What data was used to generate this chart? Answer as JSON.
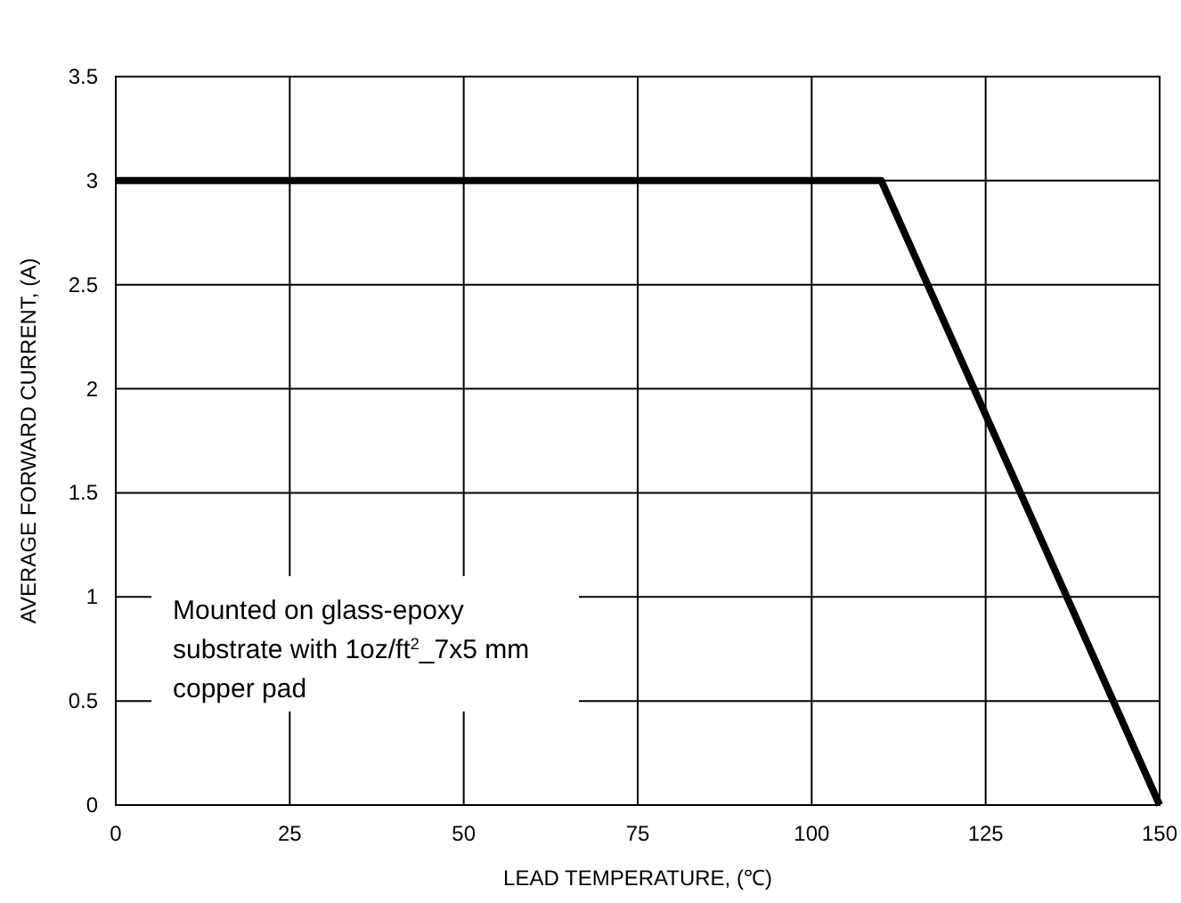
{
  "chart_data": {
    "type": "line",
    "xlabel": "LEAD TEMPERATURE, (℃)",
    "ylabel": "AVERAGE FORWARD CURRENT, (A)",
    "x": [
      0,
      110,
      150
    ],
    "series": [
      {
        "color": "#000000",
        "values": [
          3,
          3,
          0
        ]
      }
    ],
    "xlim": [
      0,
      150
    ],
    "xticks": [
      0,
      25,
      50,
      75,
      100,
      125,
      150
    ],
    "ylim": [
      0,
      3.5
    ],
    "yticks": [
      0,
      0.5,
      1,
      1.5,
      2,
      2.5,
      3,
      3.5
    ],
    "grid": true,
    "marker": "none",
    "line_style": "solid",
    "annotations": [
      "Mounted on glass-epoxy substrate with 1oz/ft$^{2}$_7x5 mm copper pad"
    ]
  }
}
